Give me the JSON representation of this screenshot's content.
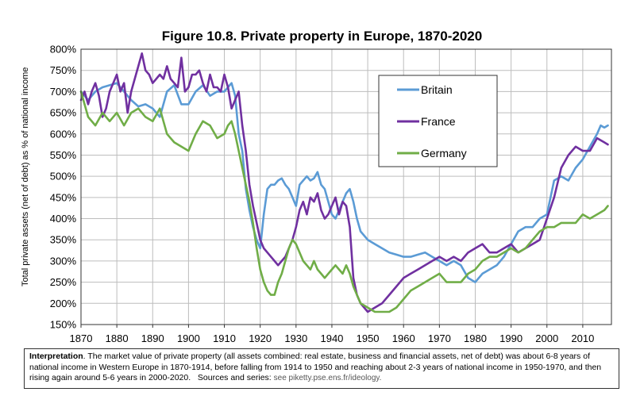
{
  "chart_data": {
    "type": "line",
    "title": "Figure 10.8. Private property in Europe, 1870-2020",
    "ylabel": "Total private assets (net of debt) as % of national income",
    "xlabel": "",
    "xlim": [
      1870,
      2018
    ],
    "ylim": [
      150,
      800
    ],
    "xticks": [
      "1870",
      "1880",
      "1890",
      "1900",
      "1910",
      "1920",
      "1930",
      "1940",
      "1950",
      "1960",
      "1970",
      "1980",
      "1990",
      "2000",
      "2010"
    ],
    "yticks": [
      "150%",
      "200%",
      "250%",
      "300%",
      "350%",
      "400%",
      "450%",
      "500%",
      "550%",
      "600%",
      "650%",
      "700%",
      "750%",
      "800%"
    ],
    "grid": true,
    "legend": "top-right",
    "series": [
      {
        "name": "Britain",
        "color": "#5b9bd5",
        "x": [
          1870,
          1872,
          1874,
          1876,
          1878,
          1880,
          1882,
          1884,
          1886,
          1888,
          1890,
          1892,
          1894,
          1896,
          1898,
          1900,
          1902,
          1904,
          1906,
          1908,
          1910,
          1912,
          1913,
          1914,
          1915,
          1916,
          1917,
          1918,
          1919,
          1920,
          1921,
          1922,
          1923,
          1924,
          1925,
          1926,
          1927,
          1928,
          1929,
          1930,
          1931,
          1932,
          1933,
          1934,
          1935,
          1936,
          1937,
          1938,
          1939,
          1940,
          1941,
          1942,
          1943,
          1944,
          1945,
          1946,
          1947,
          1948,
          1950,
          1952,
          1954,
          1956,
          1958,
          1960,
          1962,
          1964,
          1966,
          1968,
          1970,
          1972,
          1974,
          1976,
          1978,
          1980,
          1982,
          1984,
          1986,
          1988,
          1990,
          1992,
          1994,
          1996,
          1998,
          2000,
          2002,
          2004,
          2006,
          2008,
          2010,
          2012,
          2014,
          2015,
          2016,
          2017
        ],
        "values": [
          700,
          680,
          700,
          710,
          715,
          720,
          700,
          680,
          665,
          670,
          660,
          640,
          700,
          715,
          670,
          670,
          700,
          715,
          690,
          700,
          700,
          720,
          690,
          600,
          560,
          470,
          420,
          380,
          350,
          330,
          410,
          470,
          480,
          480,
          490,
          495,
          480,
          470,
          450,
          430,
          480,
          490,
          500,
          490,
          495,
          510,
          480,
          470,
          440,
          410,
          400,
          420,
          440,
          460,
          470,
          440,
          400,
          370,
          350,
          340,
          330,
          320,
          315,
          310,
          310,
          315,
          320,
          310,
          300,
          290,
          300,
          290,
          260,
          250,
          270,
          280,
          290,
          310,
          340,
          370,
          380,
          380,
          400,
          410,
          490,
          500,
          490,
          520,
          540,
          570,
          600,
          620,
          615,
          620
        ]
      },
      {
        "name": "France",
        "color": "#7030a0",
        "x": [
          1870,
          1871,
          1872,
          1873,
          1874,
          1875,
          1876,
          1877,
          1878,
          1879,
          1880,
          1881,
          1882,
          1883,
          1884,
          1885,
          1886,
          1887,
          1888,
          1889,
          1890,
          1891,
          1892,
          1893,
          1894,
          1895,
          1896,
          1897,
          1898,
          1899,
          1900,
          1901,
          1902,
          1903,
          1904,
          1905,
          1906,
          1907,
          1908,
          1909,
          1910,
          1911,
          1912,
          1913,
          1914,
          1915,
          1916,
          1917,
          1918,
          1919,
          1920,
          1921,
          1922,
          1923,
          1924,
          1925,
          1926,
          1927,
          1928,
          1929,
          1930,
          1931,
          1932,
          1933,
          1934,
          1935,
          1936,
          1937,
          1938,
          1939,
          1940,
          1941,
          1942,
          1943,
          1944,
          1945,
          1946,
          1947,
          1948,
          1949,
          1950,
          1952,
          1954,
          1956,
          1958,
          1960,
          1962,
          1964,
          1966,
          1968,
          1970,
          1972,
          1974,
          1976,
          1978,
          1980,
          1982,
          1984,
          1986,
          1988,
          1990,
          1992,
          1994,
          1996,
          1998,
          2000,
          2002,
          2004,
          2006,
          2008,
          2010,
          2012,
          2014,
          2016,
          2017
        ],
        "values": [
          680,
          700,
          670,
          700,
          720,
          690,
          640,
          660,
          700,
          720,
          740,
          700,
          720,
          650,
          700,
          730,
          760,
          790,
          750,
          740,
          720,
          730,
          740,
          730,
          760,
          730,
          720,
          710,
          780,
          700,
          710,
          740,
          740,
          750,
          720,
          700,
          740,
          710,
          710,
          700,
          740,
          710,
          660,
          680,
          700,
          620,
          560,
          480,
          430,
          390,
          350,
          330,
          320,
          310,
          300,
          290,
          300,
          310,
          330,
          350,
          380,
          420,
          440,
          410,
          450,
          440,
          460,
          420,
          400,
          410,
          430,
          450,
          410,
          440,
          430,
          380,
          260,
          220,
          200,
          190,
          180,
          190,
          200,
          220,
          240,
          260,
          270,
          280,
          290,
          300,
          310,
          300,
          310,
          300,
          320,
          330,
          340,
          320,
          320,
          330,
          340,
          320,
          330,
          340,
          350,
          400,
          450,
          520,
          550,
          570,
          560,
          560,
          590,
          580,
          575
        ]
      },
      {
        "name": "Germany",
        "color": "#70ad47",
        "x": [
          1870,
          1872,
          1874,
          1876,
          1878,
          1880,
          1882,
          1884,
          1886,
          1888,
          1890,
          1892,
          1894,
          1896,
          1898,
          1900,
          1902,
          1904,
          1906,
          1908,
          1910,
          1911,
          1912,
          1913,
          1914,
          1915,
          1916,
          1917,
          1918,
          1919,
          1920,
          1921,
          1922,
          1923,
          1924,
          1925,
          1926,
          1927,
          1928,
          1929,
          1930,
          1931,
          1932,
          1933,
          1934,
          1935,
          1936,
          1937,
          1938,
          1939,
          1940,
          1941,
          1942,
          1943,
          1944,
          1945,
          1946,
          1947,
          1948,
          1950,
          1952,
          1954,
          1956,
          1958,
          1960,
          1962,
          1964,
          1966,
          1968,
          1970,
          1972,
          1974,
          1976,
          1978,
          1980,
          1982,
          1984,
          1986,
          1988,
          1990,
          1992,
          1994,
          1996,
          1998,
          2000,
          2002,
          2004,
          2006,
          2008,
          2010,
          2012,
          2014,
          2016,
          2017
        ],
        "values": [
          700,
          640,
          620,
          650,
          630,
          650,
          620,
          650,
          660,
          640,
          630,
          660,
          600,
          580,
          570,
          560,
          600,
          630,
          620,
          590,
          600,
          620,
          630,
          600,
          560,
          520,
          480,
          440,
          390,
          330,
          280,
          250,
          230,
          220,
          220,
          250,
          270,
          300,
          330,
          350,
          340,
          320,
          300,
          290,
          280,
          300,
          280,
          270,
          260,
          270,
          280,
          290,
          280,
          270,
          290,
          270,
          240,
          220,
          200,
          190,
          180,
          180,
          180,
          190,
          210,
          230,
          240,
          250,
          260,
          270,
          250,
          250,
          250,
          270,
          280,
          300,
          310,
          310,
          320,
          330,
          320,
          330,
          350,
          370,
          380,
          380,
          390,
          390,
          390,
          410,
          400,
          410,
          420,
          430
        ]
      }
    ]
  },
  "interpretation": {
    "label": "Interpretation",
    "text": ". The market value of private property (all assets combined: real estate, business and financial assets, net of debt) was about 6-8 years of national income in Western Europe in 1870-1914, before falling from 1914 to 1950 and reaching about 2-3 years of national income in 1950-1970, and then rising again around 5-6 years in 2000-2020.",
    "sources": "Sources and series:",
    "sources_link": "see piketty.pse.ens.fr/ideology."
  }
}
